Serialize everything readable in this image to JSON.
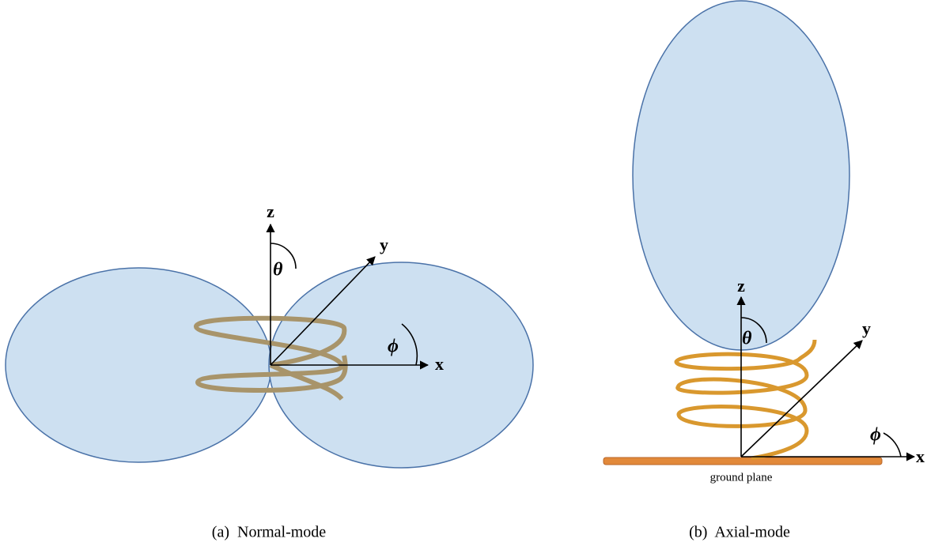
{
  "panels": [
    {
      "caption": "(a)  Normal-mode",
      "axes": {
        "z": "z",
        "y": "y",
        "x": "x"
      },
      "angles": {
        "theta": "θ",
        "phi": "ϕ"
      }
    },
    {
      "caption": "(b)  Axial-mode",
      "axes": {
        "z": "z",
        "y": "y",
        "x": "x"
      },
      "angles": {
        "theta": "θ",
        "phi": "ϕ"
      },
      "ground_label": "ground plane"
    }
  ]
}
